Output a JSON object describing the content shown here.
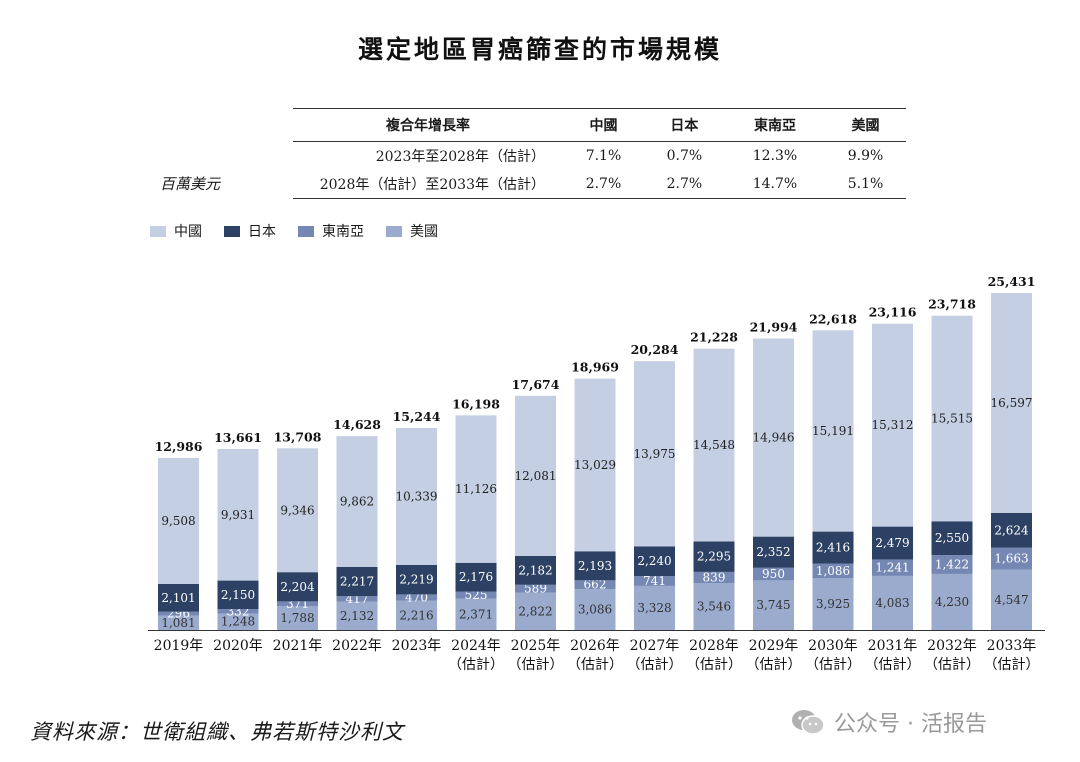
{
  "title": "選定地區胃癌篩查的市場規模",
  "cagr_table": {
    "header": [
      "複合年增長率",
      "中國",
      "日本",
      "東南亞",
      "美國"
    ],
    "rows": [
      {
        "label": "2023年至2028年（估計）",
        "values": [
          "7.1%",
          "0.7%",
          "12.3%",
          "9.9%"
        ]
      },
      {
        "label": "2028年（估計）至2033年（估計）",
        "values": [
          "2.7%",
          "2.7%",
          "14.7%",
          "5.1%"
        ]
      }
    ]
  },
  "unit_label": "百萬美元",
  "legend": [
    {
      "name": "中國",
      "color": "#c4cfe3"
    },
    {
      "name": "日本",
      "color": "#2c4164"
    },
    {
      "name": "東南亞",
      "color": "#7488b3"
    },
    {
      "name": "美國",
      "color": "#9aabce"
    }
  ],
  "chart_data": {
    "type": "bar",
    "stacked": true,
    "title": "選定地區胃癌篩查的市場規模",
    "ylabel": "百萬美元",
    "categories": [
      "2019年",
      "2020年",
      "2021年",
      "2022年",
      "2023年",
      "2024年\n(估計)",
      "2025年\n(估計)",
      "2026年\n(估計)",
      "2027年\n(估計)",
      "2028年\n(估計)",
      "2029年\n(估計)",
      "2030年\n(估計)",
      "2031年\n(估計)",
      "2032年\n(估計)",
      "2033年\n(估計)"
    ],
    "category_labels": [
      {
        "year": "2019年",
        "est": ""
      },
      {
        "year": "2020年",
        "est": ""
      },
      {
        "year": "2021年",
        "est": ""
      },
      {
        "year": "2022年",
        "est": ""
      },
      {
        "year": "2023年",
        "est": ""
      },
      {
        "year": "2024年",
        "est": "（估計）"
      },
      {
        "year": "2025年",
        "est": "（估計）"
      },
      {
        "year": "2026年",
        "est": "（估計）"
      },
      {
        "year": "2027年",
        "est": "（估計）"
      },
      {
        "year": "2028年",
        "est": "（估計）"
      },
      {
        "year": "2029年",
        "est": "（估計）"
      },
      {
        "year": "2030年",
        "est": "（估計）"
      },
      {
        "year": "2031年",
        "est": "（估計）"
      },
      {
        "year": "2032年",
        "est": "（估計）"
      },
      {
        "year": "2033年",
        "est": "（估計）"
      }
    ],
    "series": [
      {
        "name": "美國",
        "values": [
          1081,
          1248,
          1788,
          2132,
          2216,
          2371,
          2822,
          3086,
          3328,
          3546,
          3745,
          3925,
          4083,
          4230,
          4547
        ]
      },
      {
        "name": "東南亞",
        "values": [
          296,
          332,
          371,
          417,
          470,
          525,
          589,
          662,
          741,
          839,
          950,
          1086,
          1241,
          1422,
          1663
        ]
      },
      {
        "name": "日本",
        "values": [
          2101,
          2150,
          2204,
          2217,
          2219,
          2176,
          2182,
          2193,
          2240,
          2295,
          2352,
          2416,
          2479,
          2550,
          2624
        ]
      },
      {
        "name": "中國",
        "values": [
          9508,
          9931,
          9346,
          9862,
          10339,
          11126,
          12081,
          13029,
          13975,
          14548,
          14946,
          15191,
          15312,
          15515,
          16597
        ]
      }
    ],
    "totals": [
      12986,
      13661,
      13708,
      14628,
      15244,
      16198,
      17674,
      18969,
      20284,
      21228,
      21994,
      22618,
      23116,
      23718,
      25431
    ],
    "ylim": [
      0,
      26000
    ],
    "grid": false
  },
  "source": "資料來源：世衛組織、弗若斯特沙利文",
  "watermark": "公众号 · 活报告"
}
